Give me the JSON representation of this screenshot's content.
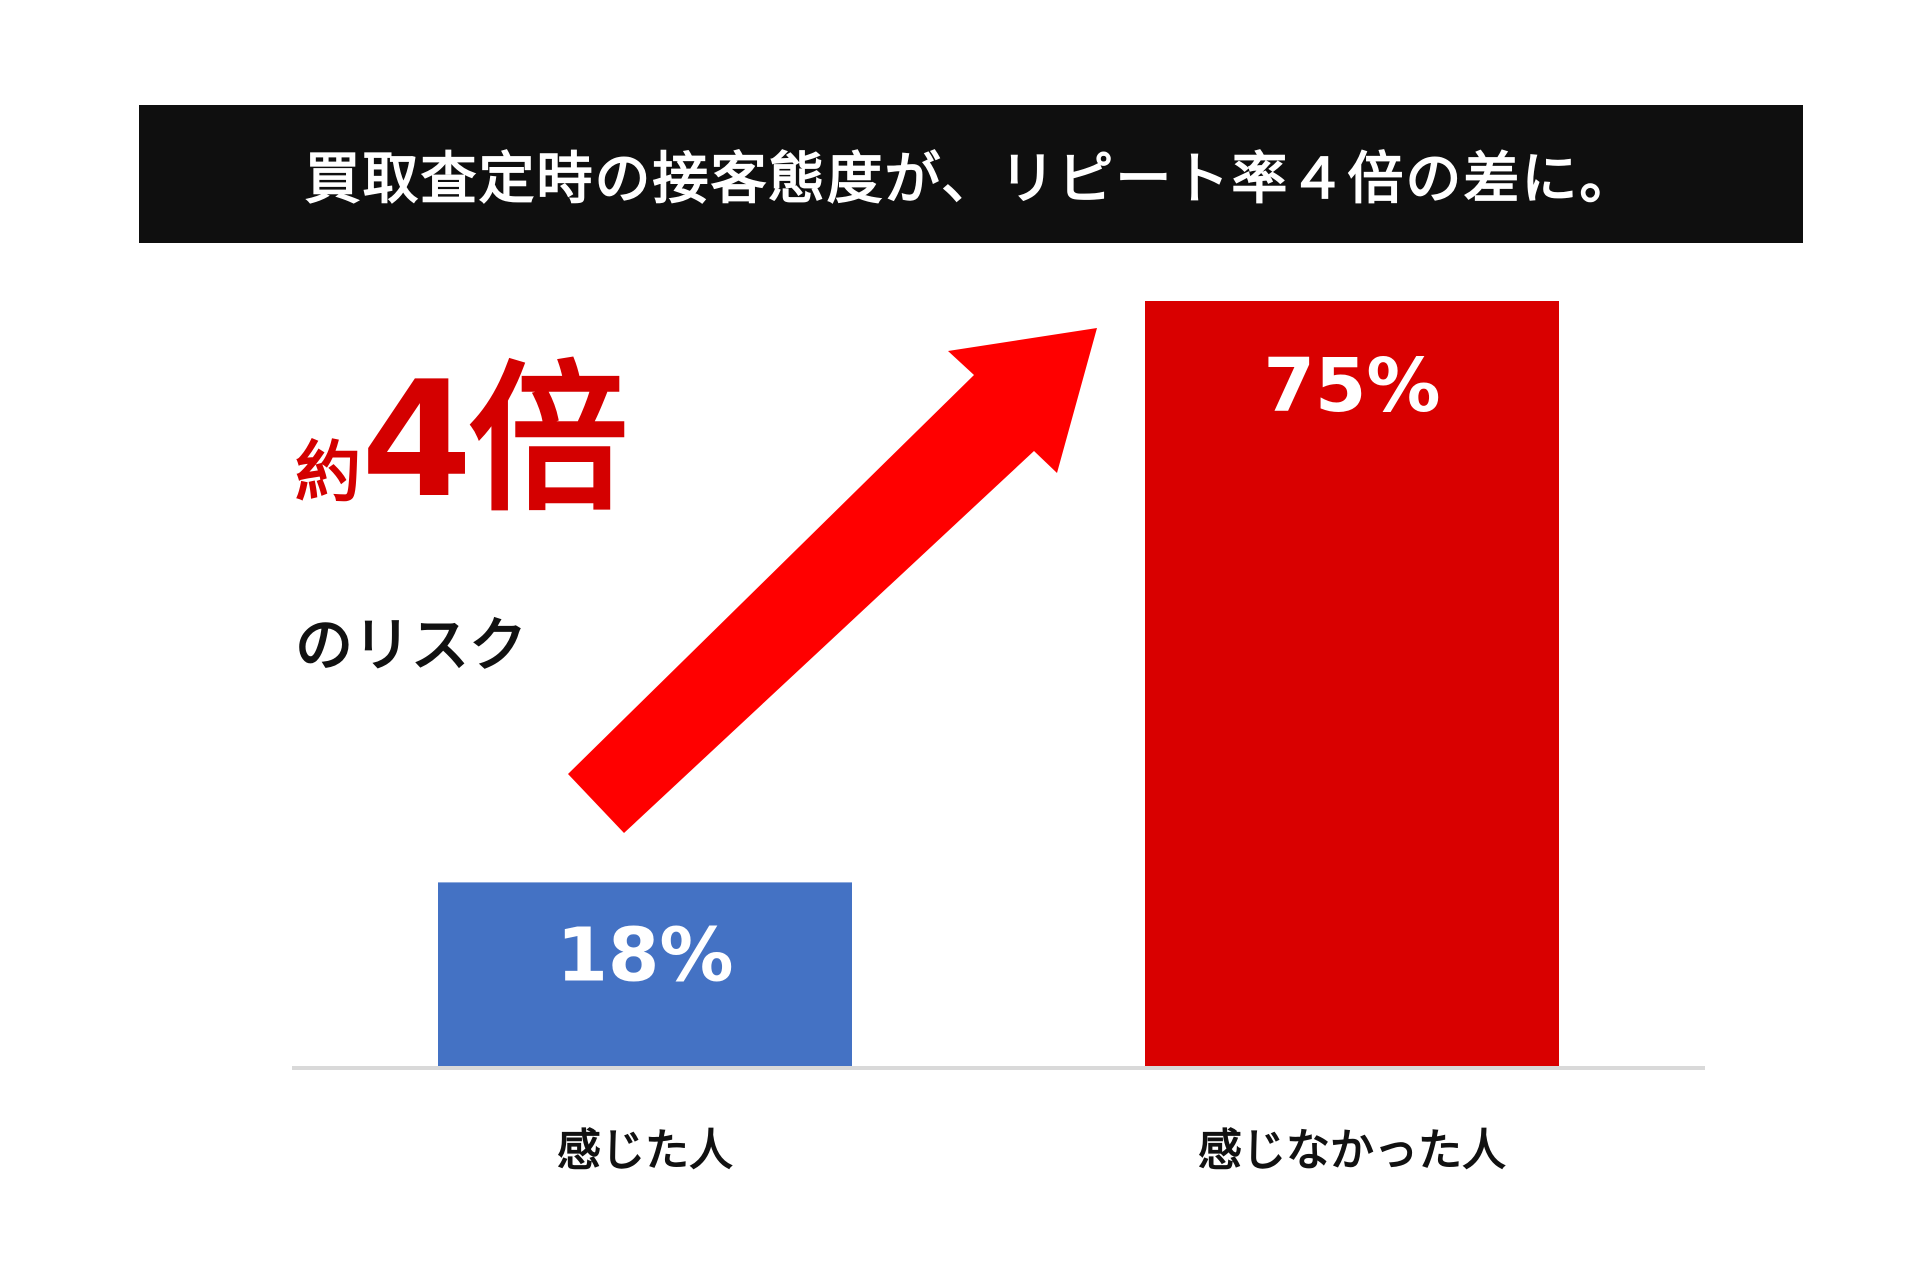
{
  "title": "買取査定時の接客態度が、リピート率４倍の差に。",
  "callout": {
    "prefix": "約",
    "multiplier": "4倍",
    "suffix": "のリスク"
  },
  "colors": {
    "banner": "#0f0f0f",
    "accent_red": "#d40000",
    "arrow_red": "#ff0000",
    "bar_blue": "#4472c4",
    "bar_red": "#d90000",
    "baseline": "#d9d9d9"
  },
  "chart_data": {
    "type": "bar",
    "categories": [
      "感じた人",
      "感じなかった人"
    ],
    "values": [
      18,
      75
    ],
    "value_labels": [
      "18%",
      "75%"
    ],
    "bar_colors": [
      "#4472c4",
      "#d90000"
    ],
    "ylim": [
      0,
      75
    ],
    "grid": false,
    "title": "買取査定時の接客態度が、リピート率４倍の差に。",
    "xlabel": "",
    "ylabel": "",
    "annotations": [
      {
        "text": "約4倍のリスク",
        "type": "arrow",
        "from": "感じた人",
        "to": "感じなかった人"
      }
    ]
  }
}
